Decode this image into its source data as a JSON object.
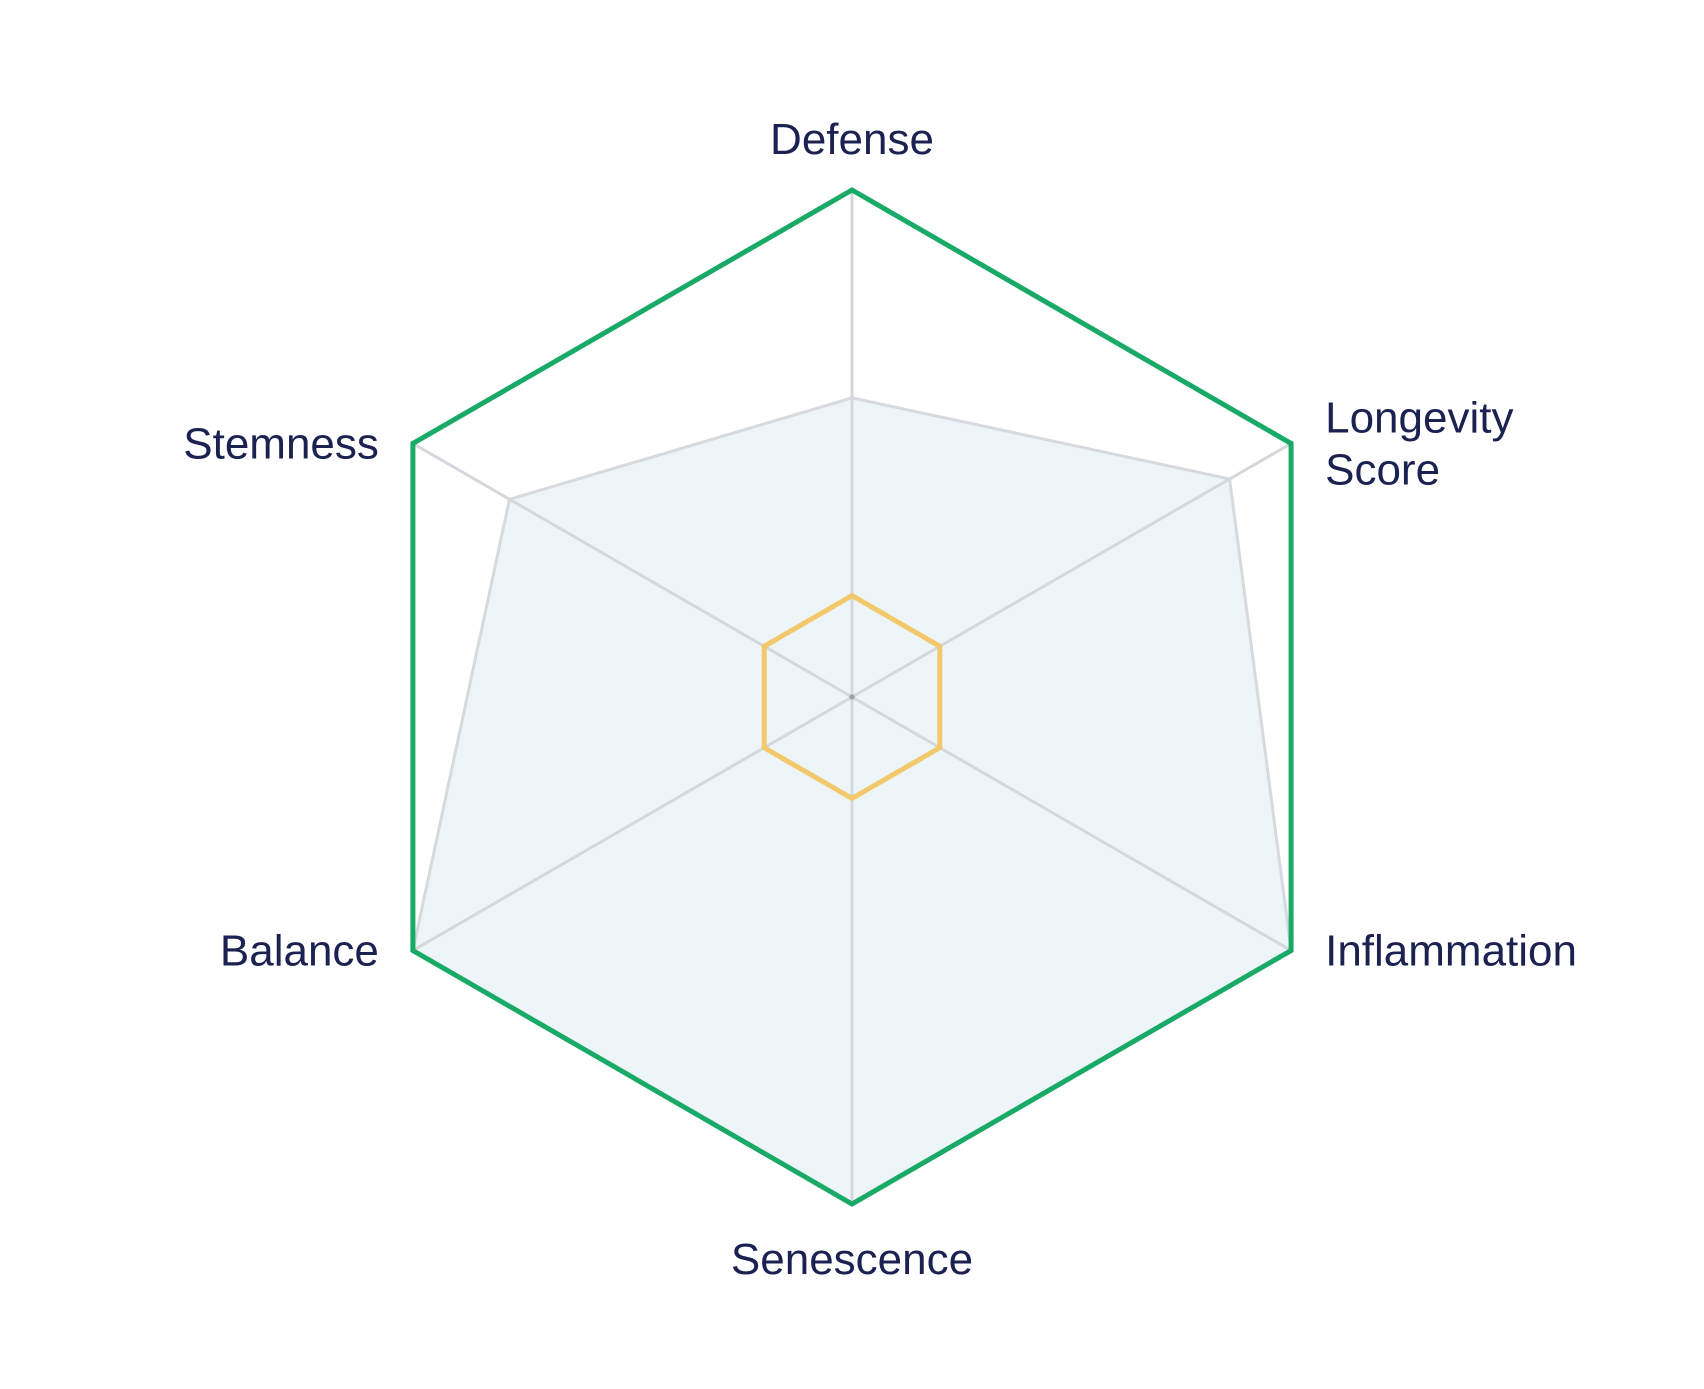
{
  "chart_data": {
    "type": "radar",
    "axes": [
      {
        "key": "defense",
        "label_lines": [
          "Defense"
        ]
      },
      {
        "key": "longevity_score",
        "label_lines": [
          "Longevity",
          "Score"
        ]
      },
      {
        "key": "inflammation",
        "label_lines": [
          "Inflammation"
        ]
      },
      {
        "key": "senescence",
        "label_lines": [
          "Senescence"
        ]
      },
      {
        "key": "balance",
        "label_lines": [
          "Balance"
        ]
      },
      {
        "key": "stemness",
        "label_lines": [
          "Stemness"
        ]
      }
    ],
    "range": [
      0,
      1
    ],
    "series": [
      {
        "key": "area",
        "values": [
          0.59,
          0.86,
          1.0,
          1.0,
          1.0,
          0.78
        ],
        "fill": "#eef5f9",
        "stroke": "#d6dadf"
      },
      {
        "key": "outer",
        "values": [
          1.0,
          1.0,
          1.0,
          1.0,
          1.0,
          1.0
        ],
        "fill": "none",
        "stroke": "#1aaa67"
      },
      {
        "key": "inner",
        "values": [
          0.2,
          0.2,
          0.2,
          0.2,
          0.2,
          0.2
        ],
        "fill": "none",
        "stroke": "#f2c86a"
      }
    ],
    "spoke_color": "#d4d7dc"
  }
}
